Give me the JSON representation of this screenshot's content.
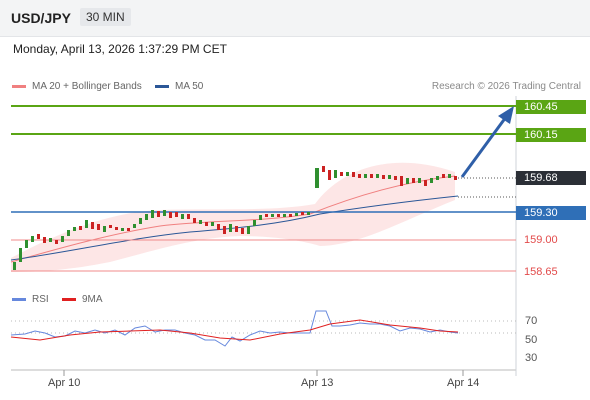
{
  "header": {
    "pair": "USD/JPY",
    "timeframe": "30 MIN"
  },
  "datetime": "Monday, April 13, 2026 1:37:29 PM CET",
  "legend": {
    "ma_bb": {
      "label": "MA 20 + Bollinger Bands",
      "color": "#f08080"
    },
    "ma50": {
      "label": "MA 50",
      "color": "#2b5797"
    }
  },
  "credit": "Research © 2026 Trading Central",
  "price_levels": [
    {
      "value": "160.45",
      "style": "green"
    },
    {
      "value": "160.15",
      "style": "green"
    },
    {
      "value": "159.68",
      "style": "dark"
    },
    {
      "value": "159.30",
      "style": "blue"
    },
    {
      "value": "159.00",
      "style": "red"
    },
    {
      "value": "158.65",
      "style": "red"
    }
  ],
  "rsi_legend": {
    "rsi": {
      "label": "RSI",
      "color": "#6688dd"
    },
    "ma9": {
      "label": "9MA",
      "color": "#e02020"
    }
  },
  "rsi_ticks": [
    "70",
    "50",
    "30"
  ],
  "x_labels": [
    "Apr 10",
    "Apr 13",
    "Apr 14"
  ],
  "colors": {
    "up": "#2f8f2f",
    "down": "#c22",
    "green_level": "#5aa514",
    "blue_level": "#2f6fb7",
    "red_level": "#f08b8b",
    "arrow": "#2f5fa8"
  }
}
